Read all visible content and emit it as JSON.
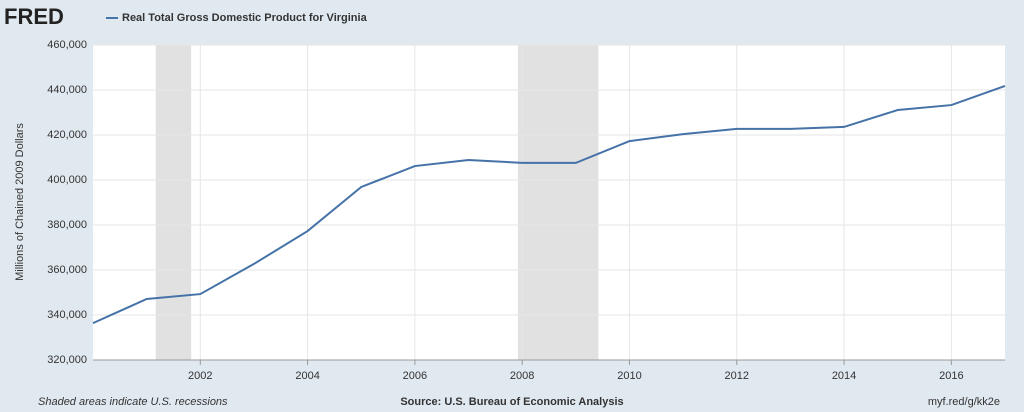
{
  "chart_data": {
    "type": "line",
    "logo": "FRED",
    "title": "Real Total Gross Domestic Product for Virginia",
    "y_label": "Millions of Chained 2009 Dollars",
    "note": "Shaded areas indicate U.S. recessions",
    "source": "Source: U.S. Bureau of Economic Analysis",
    "link": "myf.red/g/kk2e",
    "x": [
      2000,
      2001,
      2002,
      2003,
      2004,
      2005,
      2006,
      2007,
      2008,
      2009,
      2010,
      2011,
      2012,
      2013,
      2014,
      2015,
      2016,
      2017
    ],
    "series": [
      {
        "name": "Real Total Gross Domestic Product for Virginia",
        "color": "#4572a7",
        "values": [
          336400,
          347100,
          349300,
          362700,
          377300,
          396900,
          406200,
          408900,
          407600,
          407600,
          417300,
          420400,
          422700,
          422700,
          423600,
          431100,
          433300,
          441800
        ]
      }
    ],
    "recessions": [
      [
        2001.17,
        2001.83
      ],
      [
        2007.92,
        2009.42
      ]
    ],
    "recession_color": "#e1e1e1",
    "xlim": [
      2000,
      2017
    ],
    "xticks": [
      2002,
      2004,
      2006,
      2008,
      2010,
      2012,
      2014,
      2016
    ],
    "ylim": [
      320000,
      460000
    ],
    "yticks": [
      {
        "value": 320000,
        "label": "320,000"
      },
      {
        "value": 340000,
        "label": "340,000"
      },
      {
        "value": 360000,
        "label": "360,000"
      },
      {
        "value": 380000,
        "label": "380,000"
      },
      {
        "value": 400000,
        "label": "400,000"
      },
      {
        "value": 420000,
        "label": "420,000"
      },
      {
        "value": 440000,
        "label": "440,000"
      },
      {
        "value": 460000,
        "label": "460,000"
      }
    ],
    "grid": true
  }
}
